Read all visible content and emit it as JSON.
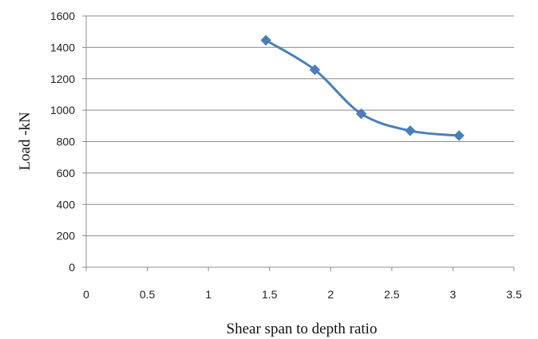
{
  "chart_data": {
    "type": "scatter",
    "title": "",
    "xlabel": "Shear span to depth ratio",
    "ylabel": "Load -kN",
    "xlim": [
      0,
      3.5
    ],
    "ylim": [
      0,
      1600
    ],
    "x_ticks": [
      "0",
      "0.5",
      "1",
      "1.5",
      "2",
      "2.5",
      "3",
      "3.5"
    ],
    "y_ticks": [
      "0",
      "200",
      "400",
      "600",
      "800",
      "1000",
      "1200",
      "1400",
      "1600"
    ],
    "grid": "horizontal",
    "legend": "none",
    "series": [
      {
        "x": [
          1.47,
          1.87,
          2.25,
          2.65,
          3.05
        ],
        "y": [
          1445,
          1257,
          977,
          869,
          838
        ],
        "line": "smooth",
        "marker": "diamond",
        "color": "#4a7ebb"
      }
    ]
  }
}
